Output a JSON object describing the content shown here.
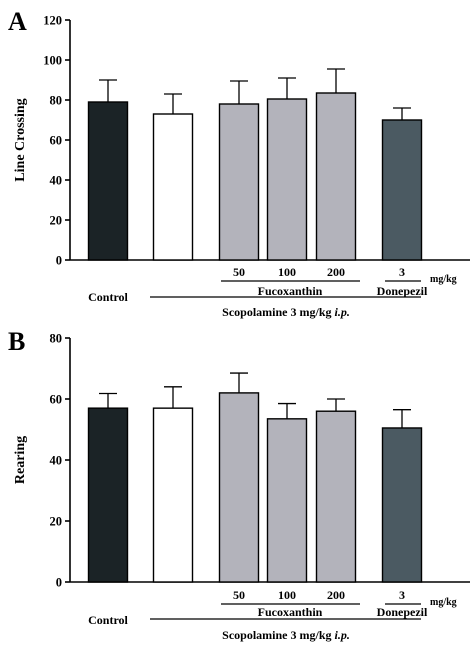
{
  "colors": {
    "control": "#1b2326",
    "scopolamine": "#ffffff",
    "fucoxanthin": "#b3b3bb",
    "donepezil": "#4b5a62"
  },
  "chart_data": [
    {
      "type": "bar",
      "panel_label": "A",
      "ylabel": "Line Crossing",
      "ylim": [
        0,
        120
      ],
      "yticks": [
        "0",
        "20",
        "40",
        "60",
        "80",
        "100",
        "120"
      ],
      "bars": [
        {
          "value": 79,
          "error": 11,
          "color_key": "control"
        },
        {
          "value": 73,
          "error": 10,
          "color_key": "scopolamine"
        },
        {
          "value": 78,
          "error": 11.5,
          "color_key": "fucoxanthin"
        },
        {
          "value": 80.5,
          "error": 10.5,
          "color_key": "fucoxanthin"
        },
        {
          "value": 83.5,
          "error": 12,
          "color_key": "fucoxanthin"
        },
        {
          "value": 70,
          "error": 6,
          "color_key": "donepezil"
        }
      ],
      "doses": [
        "50",
        "100",
        "200",
        "3"
      ],
      "dose_unit": "mg/kg",
      "groups": {
        "control": "Control",
        "fucoxanthin": "Fucoxanthin",
        "donepezil": "Donepezil",
        "scopolamine": "Scopolamine 3 mg/kg",
        "scopolamine_route": "i.p."
      }
    },
    {
      "type": "bar",
      "panel_label": "B",
      "ylabel": "Rearing",
      "ylim": [
        0,
        80
      ],
      "yticks": [
        "0",
        "20",
        "40",
        "60",
        "80"
      ],
      "bars": [
        {
          "value": 57,
          "error": 4.8,
          "color_key": "control"
        },
        {
          "value": 57,
          "error": 7,
          "color_key": "scopolamine"
        },
        {
          "value": 62,
          "error": 6.5,
          "color_key": "fucoxanthin"
        },
        {
          "value": 53.5,
          "error": 5,
          "color_key": "fucoxanthin"
        },
        {
          "value": 56,
          "error": 4,
          "color_key": "fucoxanthin"
        },
        {
          "value": 50.5,
          "error": 6,
          "color_key": "donepezil"
        }
      ],
      "doses": [
        "50",
        "100",
        "200",
        "3"
      ],
      "dose_unit": "mg/kg",
      "groups": {
        "control": "Control",
        "fucoxanthin": "Fucoxanthin",
        "donepezil": "Donepezil",
        "scopolamine": "Scopolamine 3 mg/kg",
        "scopolamine_route": "i.p."
      }
    }
  ]
}
